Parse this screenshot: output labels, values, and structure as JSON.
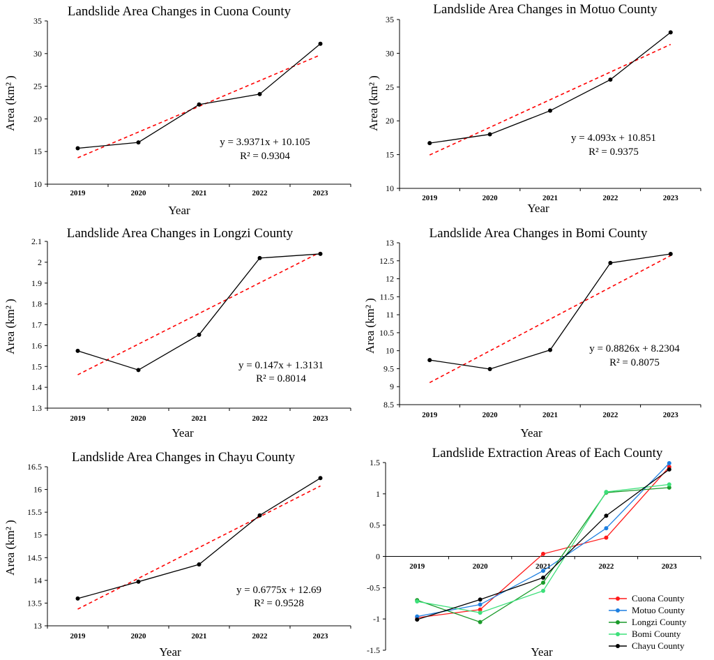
{
  "chart_data": [
    {
      "type": "line",
      "title": "Landslide Area Changes in Cuona County",
      "xlabel": "Year",
      "ylabel": "Area (km² )",
      "categories": [
        "2019",
        "2020",
        "2021",
        "2022",
        "2023"
      ],
      "ylim": [
        10,
        35
      ],
      "yticks": [
        10,
        15,
        20,
        25,
        30,
        35
      ],
      "ytick_labels": [
        "10",
        "15",
        "20",
        "25",
        "30",
        "35"
      ],
      "series": [
        {
          "name": "Area",
          "values": [
            15.5,
            16.4,
            22.2,
            23.8,
            31.5
          ],
          "color": "#000000"
        }
      ],
      "trendline": {
        "slope": 3.9371,
        "intercept": 10.105,
        "color": "#ff0000"
      },
      "equation": "y = 3.9371x + 10.105",
      "r2": "R² = 0.9304"
    },
    {
      "type": "line",
      "title": "Landslide Area Changes in Motuo County",
      "xlabel": "Year",
      "ylabel": "Area (km² )",
      "categories": [
        "2019",
        "2020",
        "2021",
        "2022",
        "2023"
      ],
      "ylim": [
        10,
        35
      ],
      "yticks": [
        10,
        15,
        20,
        25,
        30,
        35
      ],
      "ytick_labels": [
        "10",
        "15",
        "20",
        "25",
        "30",
        "35"
      ],
      "series": [
        {
          "name": "Area",
          "values": [
            16.7,
            18.0,
            21.5,
            26.1,
            33.1
          ],
          "color": "#000000"
        }
      ],
      "trendline": {
        "slope": 4.093,
        "intercept": 10.851,
        "color": "#ff0000"
      },
      "equation": "y = 4.093x + 10.851",
      "r2": "R² = 0.9375"
    },
    {
      "type": "line",
      "title": "Landslide Area Changes in Longzi County",
      "xlabel": "Year",
      "ylabel": "Area (km² )",
      "categories": [
        "2019",
        "2020",
        "2021",
        "2022",
        "2023"
      ],
      "ylim": [
        1.3,
        2.1
      ],
      "yticks": [
        1.3,
        1.4,
        1.5,
        1.6,
        1.7,
        1.8,
        1.9,
        2.0,
        2.1
      ],
      "ytick_labels": [
        "1.3",
        "1.4",
        "1.5",
        "1.6",
        "1.7",
        "1.8",
        "1.9",
        "2",
        "2.1"
      ],
      "series": [
        {
          "name": "Area",
          "values": [
            1.575,
            1.483,
            1.652,
            2.02,
            2.04
          ],
          "color": "#000000"
        }
      ],
      "trendline": {
        "slope": 0.147,
        "intercept": 1.3131,
        "color": "#ff0000"
      },
      "equation": "y = 0.147x + 1.3131",
      "r2": "R² = 0.8014"
    },
    {
      "type": "line",
      "title": "Landslide Area Changes in Bomi County",
      "xlabel": "Year",
      "ylabel": "Area (km² )",
      "categories": [
        "2019",
        "2020",
        "2021",
        "2022",
        "2023"
      ],
      "ylim": [
        8.5,
        13
      ],
      "yticks": [
        8.5,
        9,
        9.5,
        10,
        10.5,
        11,
        11.5,
        12,
        12.5,
        13
      ],
      "ytick_labels": [
        "8.5",
        "9",
        "9.5",
        "10",
        "10.5",
        "11",
        "11.5",
        "12",
        "12.5",
        "13"
      ],
      "series": [
        {
          "name": "Area",
          "values": [
            9.74,
            9.49,
            10.02,
            12.44,
            12.69
          ],
          "color": "#000000"
        }
      ],
      "trendline": {
        "slope": 0.8826,
        "intercept": 8.2304,
        "color": "#ff0000"
      },
      "equation": "y = 0.8826x + 8.2304",
      "r2": "R² = 0.8075"
    },
    {
      "type": "line",
      "title": "Landslide Area Changes in Chayu County",
      "xlabel": "Year",
      "ylabel": "Area (km² )",
      "categories": [
        "2019",
        "2020",
        "2021",
        "2022",
        "2023"
      ],
      "ylim": [
        13,
        16.5
      ],
      "yticks": [
        13,
        13.5,
        14,
        14.5,
        15,
        15.5,
        16,
        16.5
      ],
      "ytick_labels": [
        "13",
        "13.5",
        "14",
        "14.5",
        "15",
        "15.5",
        "16",
        "16.5"
      ],
      "series": [
        {
          "name": "Area",
          "values": [
            13.6,
            13.97,
            14.35,
            15.43,
            16.25
          ],
          "color": "#000000"
        }
      ],
      "trendline": {
        "slope": 0.6775,
        "intercept": 12.69,
        "color": "#ff0000"
      },
      "equation": "y = 0.6775x + 12.69",
      "r2": "R² = 0.9528"
    },
    {
      "type": "line",
      "title": "Landslide Extraction Areas of Each County",
      "xlabel": "Year",
      "ylabel": "",
      "categories": [
        "2019",
        "2020",
        "2021",
        "2022",
        "2023"
      ],
      "ylim": [
        -1.5,
        1.5
      ],
      "yticks": [
        -1.5,
        -1,
        -0.5,
        0,
        0.5,
        1,
        1.5
      ],
      "ytick_labels": [
        "-1.5",
        "-1",
        "-0.5",
        "0",
        "0.5",
        "1",
        "1.5"
      ],
      "series": [
        {
          "name": "Cuona County",
          "values": [
            -0.98,
            -0.85,
            0.04,
            0.3,
            1.43
          ],
          "color": "#ff1a1a"
        },
        {
          "name": "Motuo County",
          "values": [
            -0.96,
            -0.77,
            -0.23,
            0.45,
            1.49
          ],
          "color": "#1e7fe0"
        },
        {
          "name": "Longzi County",
          "values": [
            -0.7,
            -1.05,
            -0.42,
            1.02,
            1.1
          ],
          "color": "#1a9a2a"
        },
        {
          "name": "Bomi County",
          "values": [
            -0.72,
            -0.9,
            -0.55,
            1.03,
            1.15
          ],
          "color": "#3de07a"
        },
        {
          "name": "Chayu County",
          "values": [
            -1.01,
            -0.69,
            -0.34,
            0.65,
            1.39
          ],
          "color": "#000000"
        }
      ]
    }
  ]
}
